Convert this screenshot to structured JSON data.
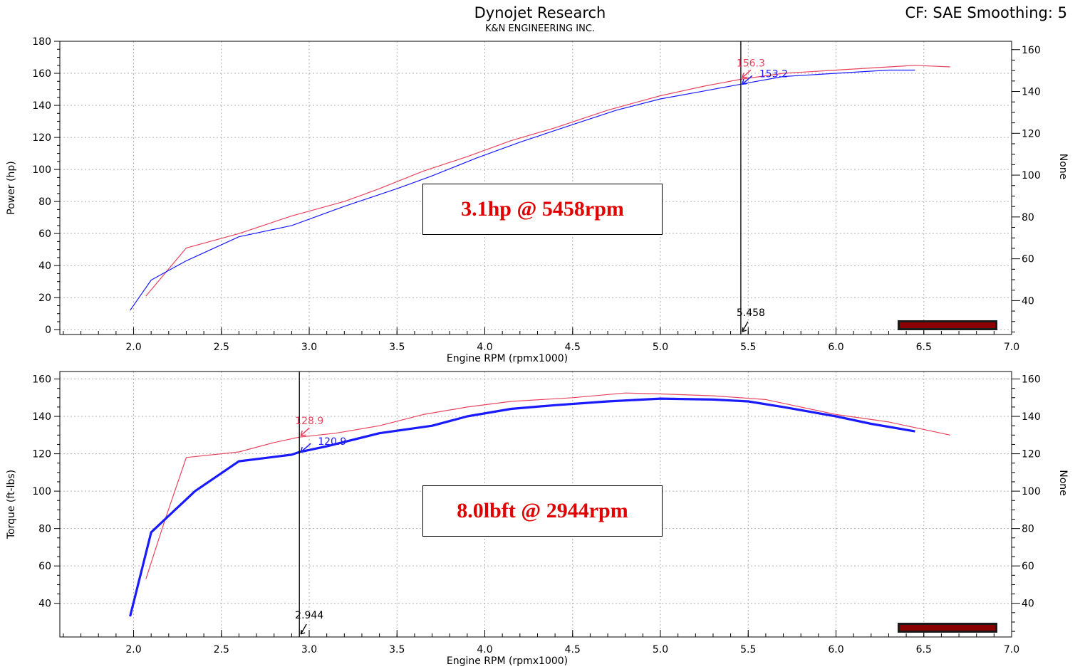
{
  "header": {
    "title": "Dynojet Research",
    "subtitle": "K&N ENGINEERING INC.",
    "cf_info": "CF: SAE Smoothing: 5"
  },
  "colors": {
    "red": "#e8445e",
    "blue": "#1a1aff",
    "axis": "#000000",
    "grid": "#b0b0b0"
  },
  "chart_data": [
    {
      "type": "line",
      "id": "power",
      "title": "",
      "xlabel": "Engine RPM (rpmx1000)",
      "ylabel": "Power (hp)",
      "y2label": "None",
      "xlim": [
        1.58,
        7.0
      ],
      "xticks": [
        2.0,
        2.5,
        3.0,
        3.5,
        4.0,
        4.5,
        5.0,
        5.5,
        6.0,
        6.5,
        7.0
      ],
      "xtick_labels": [
        "2.0",
        "2.5",
        "3.0",
        "3.5",
        "4.0",
        "4.5",
        "5.0",
        "5.5",
        "6.0",
        "6.5",
        "7.0"
      ],
      "ylim": [
        -3,
        180
      ],
      "yticks": [
        0,
        20,
        40,
        60,
        80,
        100,
        120,
        140,
        160,
        180
      ],
      "ytick_labels": [
        "0",
        "20",
        "40",
        "60",
        "80",
        "100",
        "120",
        "140",
        "160",
        "180"
      ],
      "y2lim": [
        23.8,
        164
      ],
      "y2ticks": [
        40,
        60,
        80,
        100,
        120,
        140,
        160
      ],
      "y2tick_labels": [
        "40",
        "60",
        "80",
        "100",
        "120",
        "140",
        "160"
      ],
      "grid": true,
      "series": [
        {
          "color": "red",
          "width": 1.2,
          "x": [
            2.07,
            2.3,
            2.6,
            2.9,
            3.2,
            3.4,
            3.65,
            3.9,
            4.15,
            4.4,
            4.7,
            5.0,
            5.25,
            5.458,
            5.7,
            6.0,
            6.3,
            6.45,
            6.65
          ],
          "y": [
            21,
            51,
            60,
            71,
            80,
            88,
            99,
            108,
            118,
            126,
            137,
            146,
            152,
            156.3,
            160,
            162,
            164,
            165,
            164
          ]
        },
        {
          "color": "blue",
          "width": 1.2,
          "x": [
            1.98,
            2.1,
            2.3,
            2.6,
            2.9,
            3.2,
            3.5,
            3.7,
            3.95,
            4.2,
            4.5,
            4.75,
            5.0,
            5.25,
            5.458,
            5.7,
            6.0,
            6.3,
            6.45
          ],
          "y": [
            12,
            31,
            43,
            58,
            65,
            77,
            88,
            96,
            107,
            117,
            128,
            137,
            144,
            149,
            153.2,
            158,
            160,
            162,
            162
          ]
        }
      ],
      "marker": {
        "x": 5.458,
        "label": "5.458"
      },
      "annotations": [
        {
          "label": "156.3",
          "x": 5.458,
          "y": 156.3,
          "color": "red"
        },
        {
          "label": "153.2",
          "x": 5.458,
          "y": 153.2,
          "color": "blue"
        }
      ],
      "callout": "3.1hp @ 5458rpm"
    },
    {
      "type": "line",
      "id": "torque",
      "title": "",
      "xlabel": "Engine RPM (rpmx1000)",
      "ylabel": "Torque (ft-lbs)",
      "y2label": "None",
      "xlim": [
        1.58,
        7.0
      ],
      "xticks": [
        2.0,
        2.5,
        3.0,
        3.5,
        4.0,
        4.5,
        5.0,
        5.5,
        6.0,
        6.5,
        7.0
      ],
      "xtick_labels": [
        "2.0",
        "2.5",
        "3.0",
        "3.5",
        "4.0",
        "4.5",
        "5.0",
        "5.5",
        "6.0",
        "6.5",
        "7.0"
      ],
      "ylim": [
        22,
        164
      ],
      "yticks": [
        40,
        60,
        80,
        100,
        120,
        140,
        160
      ],
      "ytick_labels": [
        "40",
        "60",
        "80",
        "100",
        "120",
        "140",
        "160"
      ],
      "y2lim": [
        22,
        164
      ],
      "y2ticks": [
        40,
        60,
        80,
        100,
        120,
        140,
        160
      ],
      "y2tick_labels": [
        "40",
        "60",
        "80",
        "100",
        "120",
        "140",
        "160"
      ],
      "grid": true,
      "series": [
        {
          "color": "red",
          "width": 1.2,
          "x": [
            2.07,
            2.18,
            2.3,
            2.6,
            2.8,
            2.944,
            3.15,
            3.4,
            3.65,
            3.9,
            4.15,
            4.5,
            4.8,
            5.0,
            5.3,
            5.6,
            5.8,
            6.0,
            6.3,
            6.45,
            6.65
          ],
          "y": [
            53,
            85,
            118,
            121,
            126,
            128.9,
            131,
            135,
            141,
            145,
            148,
            150,
            152.5,
            152,
            151,
            149,
            145,
            141,
            137,
            134,
            130
          ]
        },
        {
          "color": "blue",
          "width": 3.2,
          "x": [
            1.98,
            2.1,
            2.35,
            2.6,
            2.9,
            2.944,
            3.1,
            3.4,
            3.7,
            3.9,
            4.15,
            4.4,
            4.7,
            5.0,
            5.3,
            5.5,
            5.7,
            6.0,
            6.2,
            6.45
          ],
          "y": [
            33,
            78,
            100,
            116,
            119.5,
            120.9,
            124,
            131,
            135,
            140,
            144,
            146,
            148,
            149.5,
            149,
            148,
            145,
            140,
            136,
            132
          ]
        }
      ],
      "marker": {
        "x": 2.944,
        "label": "2.944"
      },
      "annotations": [
        {
          "label": "128.9",
          "x": 2.944,
          "y": 128.9,
          "color": "red"
        },
        {
          "label": "120.9",
          "x": 2.944,
          "y": 120.9,
          "color": "blue"
        }
      ],
      "callout": "8.0lbft @ 2944rpm"
    }
  ]
}
